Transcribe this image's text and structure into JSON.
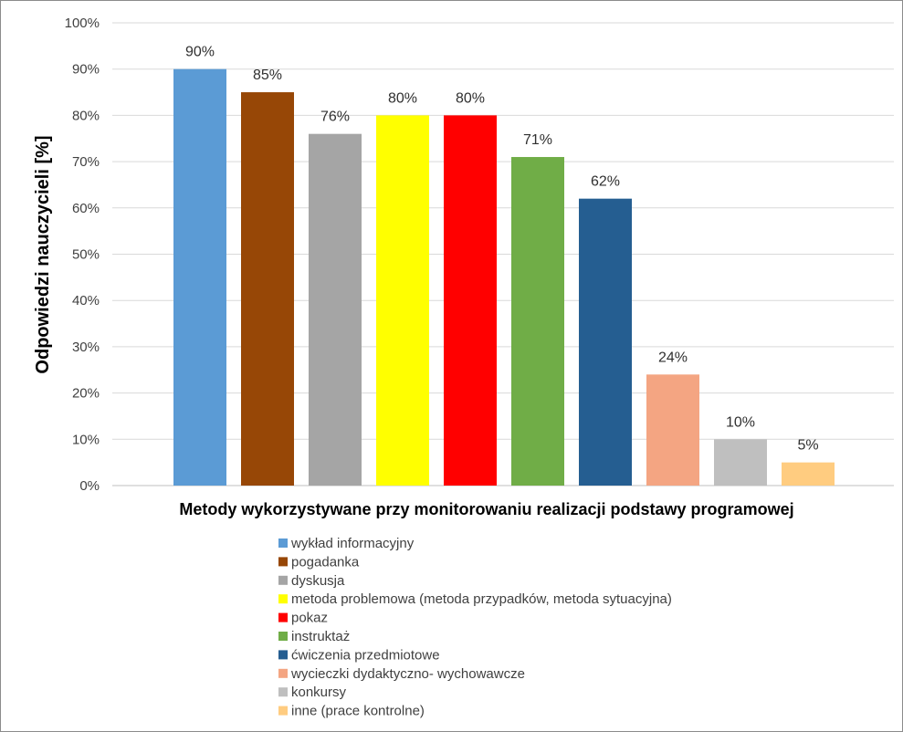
{
  "chart_data": {
    "type": "bar",
    "xlabel": "Metody wykorzystywane przy monitorowaniu realizacji podstawy programowej",
    "ylabel": "Odpowiedzi nauczycieli [%]",
    "ylim": [
      0,
      100
    ],
    "yticks": [
      "0%",
      "10%",
      "20%",
      "30%",
      "40%",
      "50%",
      "60%",
      "70%",
      "80%",
      "90%",
      "100%"
    ],
    "grid": true,
    "legend_position": "bottom",
    "series": [
      {
        "name": "wykład informacyjny",
        "value": 90,
        "label": "90%",
        "color": "#5b9bd5"
      },
      {
        "name": "pogadanka",
        "value": 85,
        "label": "85%",
        "color": "#974706"
      },
      {
        "name": "dyskusja",
        "value": 76,
        "label": "76%",
        "color": "#a5a5a5"
      },
      {
        "name": "metoda problemowa (metoda przypadków, metoda sytuacyjna)",
        "value": 80,
        "label": "80%",
        "color": "#ffff00"
      },
      {
        "name": "pokaz",
        "value": 80,
        "label": "80%",
        "color": "#ff0000"
      },
      {
        "name": "instruktaż",
        "value": 71,
        "label": "71%",
        "color": "#70ad47"
      },
      {
        "name": "ćwiczenia przedmiotowe",
        "value": 62,
        "label": "62%",
        "color": "#255e91"
      },
      {
        "name": "wycieczki dydaktyczno- wychowawcze",
        "value": 24,
        "label": "24%",
        "color": "#f4a582"
      },
      {
        "name": "konkursy",
        "value": 10,
        "label": "10%",
        "color": "#bfbfbf"
      },
      {
        "name": "inne (prace kontrolne)",
        "value": 5,
        "label": "5%",
        "color": "#ffcc80"
      }
    ]
  }
}
